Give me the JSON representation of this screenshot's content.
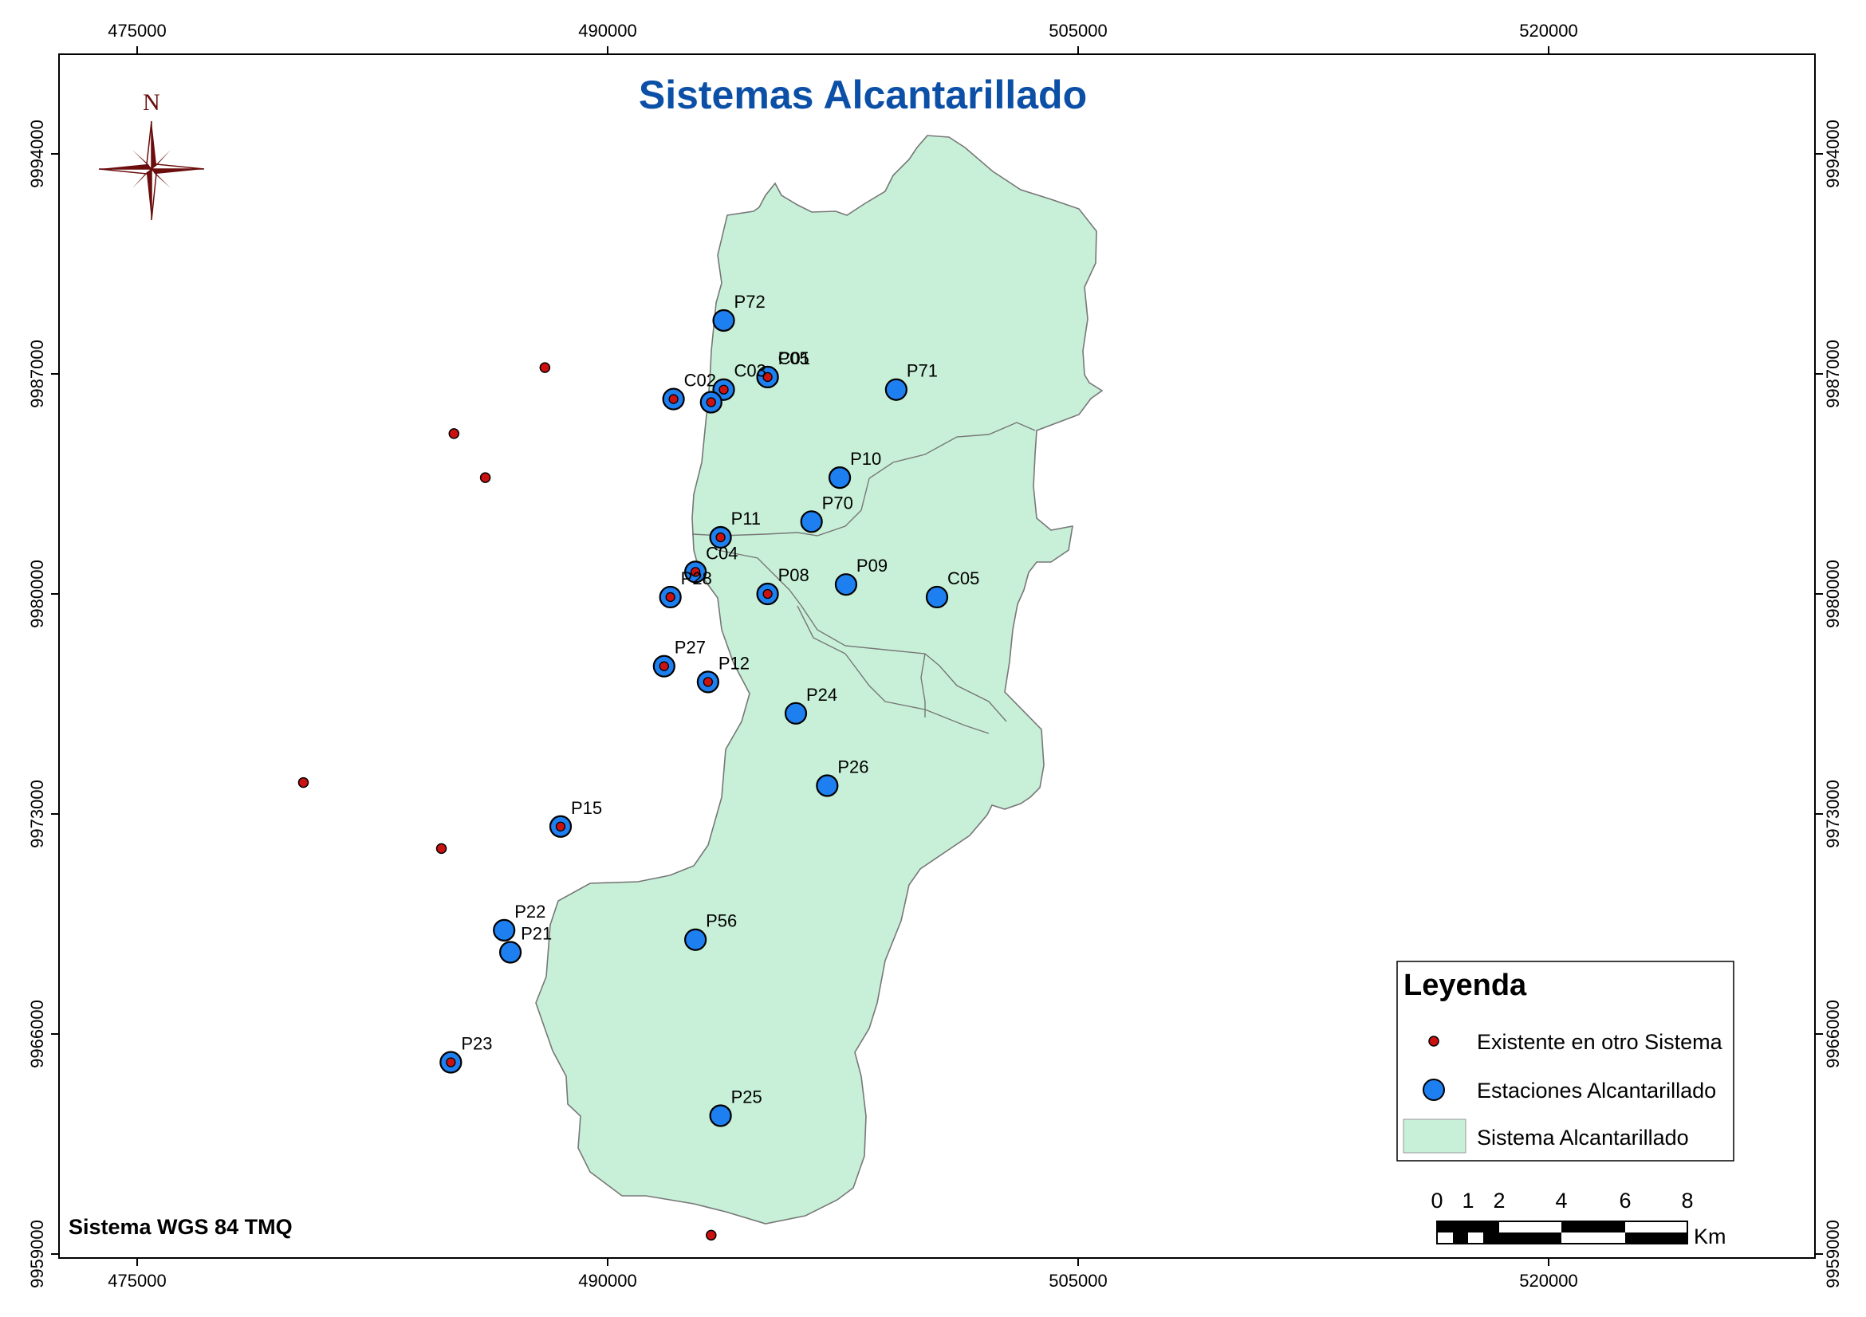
{
  "map": {
    "title": "Sistemas Alcantarillado",
    "crs_label": "Sistema WGS 84 TMQ",
    "north_label": "N",
    "x_ticks": [
      "475000",
      "490000",
      "505000",
      "520000"
    ],
    "y_ticks": [
      "9994000",
      "9987000",
      "9980000",
      "9973000",
      "9966000",
      "9959000"
    ],
    "colors": {
      "polygon_fill": "#c8f0d8",
      "station_fill": "#1e7ff0",
      "existing_fill": "#cc1111",
      "title": "#0b4fa6",
      "north_arrow": "#6b0d0d"
    }
  },
  "legend": {
    "title": "Leyenda",
    "items": [
      {
        "label": "Existente en otro Sistema",
        "symbol": "small-red-dot"
      },
      {
        "label": "Estaciones Alcantarillado",
        "symbol": "blue-circle"
      },
      {
        "label": "Sistema Alcantarillado",
        "symbol": "green-patch"
      }
    ]
  },
  "scale_bar": {
    "labels": [
      "0",
      "1",
      "2",
      "4",
      "6",
      "8"
    ],
    "unit": "Km"
  },
  "stations": [
    {
      "label": "P72",
      "x": 493700,
      "y": 9988700,
      "existing": false
    },
    {
      "label": "P05",
      "x": 495100,
      "y": 9986900,
      "existing": true
    },
    {
      "label": "C01",
      "x": 495100,
      "y": 9986900,
      "existing": true
    },
    {
      "label": "C02",
      "x": 492100,
      "y": 9986200,
      "existing": true
    },
    {
      "label": "C03",
      "x": 493700,
      "y": 9986500,
      "existing": true
    },
    {
      "label": "",
      "x": 493300,
      "y": 9986100,
      "existing": true
    },
    {
      "label": "P71",
      "x": 499200,
      "y": 9986500,
      "existing": false
    },
    {
      "label": "P10",
      "x": 497400,
      "y": 9983700,
      "existing": false
    },
    {
      "label": "P70",
      "x": 496500,
      "y": 9982300,
      "existing": false
    },
    {
      "label": "P11",
      "x": 493600,
      "y": 9981800,
      "existing": true
    },
    {
      "label": "C04",
      "x": 492800,
      "y": 9980700,
      "existing": true
    },
    {
      "label": "P28",
      "x": 492000,
      "y": 9979900,
      "existing": true
    },
    {
      "label": "P08",
      "x": 495100,
      "y": 9980000,
      "existing": true
    },
    {
      "label": "P09",
      "x": 497600,
      "y": 9980300,
      "existing": false
    },
    {
      "label": "C05",
      "x": 500500,
      "y": 9979900,
      "existing": false
    },
    {
      "label": "P27",
      "x": 491800,
      "y": 9977700,
      "existing": true
    },
    {
      "label": "P12",
      "x": 493200,
      "y": 9977200,
      "existing": true
    },
    {
      "label": "P24",
      "x": 496000,
      "y": 9976200,
      "existing": false
    },
    {
      "label": "P26",
      "x": 497000,
      "y": 9973900,
      "existing": false
    },
    {
      "label": "P15",
      "x": 488500,
      "y": 9972600,
      "existing": true
    },
    {
      "label": "P22",
      "x": 486700,
      "y": 9969300,
      "existing": false
    },
    {
      "label": "P21",
      "x": 486900,
      "y": 9968600,
      "existing": false
    },
    {
      "label": "P56",
      "x": 492800,
      "y": 9969000,
      "existing": false
    },
    {
      "label": "P23",
      "x": 485000,
      "y": 9965100,
      "existing": true
    },
    {
      "label": "P25",
      "x": 493600,
      "y": 9963400,
      "existing": false
    }
  ],
  "other_system_points": [
    {
      "x": 488000,
      "y": 9987200
    },
    {
      "x": 485100,
      "y": 9985100
    },
    {
      "x": 486100,
      "y": 9983700
    },
    {
      "x": 480300,
      "y": 9974000
    },
    {
      "x": 484700,
      "y": 9971900
    },
    {
      "x": 493300,
      "y": 9959600
    }
  ]
}
